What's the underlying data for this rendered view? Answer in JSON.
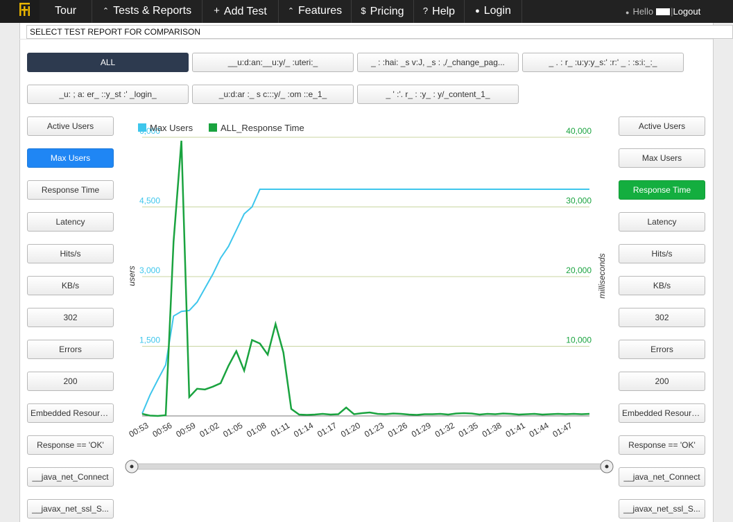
{
  "nav": {
    "items": [
      {
        "label": "Tour",
        "icon": ""
      },
      {
        "label": "Tests & Reports",
        "icon": "home-icon"
      },
      {
        "label": "Add Test",
        "icon": "plus-icon"
      },
      {
        "label": "Features",
        "icon": "home-icon"
      },
      {
        "label": "Pricing",
        "icon": "dollar-icon"
      },
      {
        "label": "Help",
        "icon": "question-icon"
      },
      {
        "label": "Login",
        "icon": "user-icon"
      }
    ],
    "hello": "Hello",
    "logout": "Logout"
  },
  "select_label": "SELECT TEST REPORT FOR COMPARISON",
  "reports": [
    "ALL",
    "__u:d:an:__u:y/_ :uteri:_",
    "_ : :hai: _s  v:J, _s :   ,/_change_pag...",
    "_  .  :  r_ :u:y:y_s:' :r:' _ :  :s:i:_:_",
    "_u: ; a: er_ ::y_st :'  _login_",
    "_u:d:ar :_ s      c:::y/_ :om ::e_1_",
    "_  ' :'. r_ : :y_ :   y/_content_1_"
  ],
  "left_metrics": [
    "Active Users",
    "Max Users",
    "Response Time",
    "Latency",
    "Hits/s",
    "KB/s",
    "302",
    "Errors",
    "200",
    "Embedded Resources",
    "Response == 'OK'",
    "__java_net_Connect",
    "__javax_net_ssl_S..."
  ],
  "right_metrics": [
    "Active Users",
    "Max Users",
    "Response Time",
    "Latency",
    "Hits/s",
    "KB/s",
    "302",
    "Errors",
    "200",
    "Embedded Resources",
    "Response == 'OK'",
    "__java_net_Connect",
    "__javax_net_ssl_S..."
  ],
  "colors": {
    "max_users": "#3ec6ec",
    "response_time": "#1aa33f",
    "active_blue": "#1f86f4",
    "active_green": "#14ae3f",
    "grid": "#c8d5a0"
  },
  "chart_data": {
    "type": "line",
    "legend": [
      "Max Users",
      "ALL_Response Time"
    ],
    "ylabel_left": "users",
    "ylabel_right": "milliseconds",
    "y_left_ticks": [
      "1,500",
      "3,000",
      "4,500",
      "6,000"
    ],
    "y_right_ticks": [
      "10,000",
      "20,000",
      "30,000",
      "40,000"
    ],
    "ylim_left": [
      0,
      6000
    ],
    "ylim_right": [
      0,
      40000
    ],
    "x_ticks": [
      "00:53",
      "00:56",
      "00:59",
      "01:02",
      "01:05",
      "01:08",
      "01:11",
      "01:14",
      "01:17",
      "01:20",
      "01:23",
      "01:26",
      "01:29",
      "01:32",
      "01:35",
      "01:38",
      "01:41",
      "01:44",
      "01:47"
    ],
    "x_seconds": [
      53,
      54,
      55,
      56,
      57,
      58,
      59,
      60,
      61,
      62,
      63,
      64,
      65,
      66,
      67,
      68,
      69,
      70,
      71,
      72,
      73,
      74,
      75,
      76,
      77,
      78,
      79,
      80,
      81,
      82,
      83,
      84,
      85,
      86,
      87,
      88,
      89,
      90,
      91,
      92,
      93,
      94,
      95,
      96,
      97,
      98,
      99,
      100,
      101,
      102,
      103,
      104,
      105,
      106,
      107,
      108,
      109,
      110
    ],
    "series": [
      {
        "name": "Max Users",
        "axis": "left",
        "values": [
          50,
          450,
          780,
          1100,
          2150,
          2250,
          2270,
          2450,
          2750,
          3050,
          3400,
          3650,
          4000,
          4350,
          4500,
          4880,
          4880,
          4880,
          4880,
          4880,
          4880,
          4880,
          4880,
          4880,
          4880,
          4880,
          4880,
          4880,
          4880,
          4880,
          4880,
          4880,
          4880,
          4880,
          4880,
          4880,
          4880,
          4880,
          4880,
          4880,
          4880,
          4880,
          4880,
          4880,
          4880,
          4880,
          4880,
          4880,
          4880,
          4880,
          4880,
          4880,
          4880,
          4880,
          4880,
          4880,
          4880,
          4880
        ]
      },
      {
        "name": "ALL_Response Time",
        "axis": "right",
        "values": [
          300,
          50,
          0,
          100,
          25000,
          39500,
          2700,
          3900,
          3800,
          4200,
          4700,
          7200,
          9300,
          6500,
          10900,
          10400,
          8800,
          13200,
          9100,
          1000,
          200,
          150,
          200,
          300,
          200,
          250,
          1200,
          250,
          400,
          500,
          300,
          250,
          350,
          300,
          200,
          150,
          250,
          250,
          300,
          200,
          350,
          400,
          350,
          200,
          300,
          250,
          350,
          300,
          200,
          250,
          300,
          200,
          250,
          300,
          250,
          300,
          250,
          300
        ]
      }
    ]
  }
}
